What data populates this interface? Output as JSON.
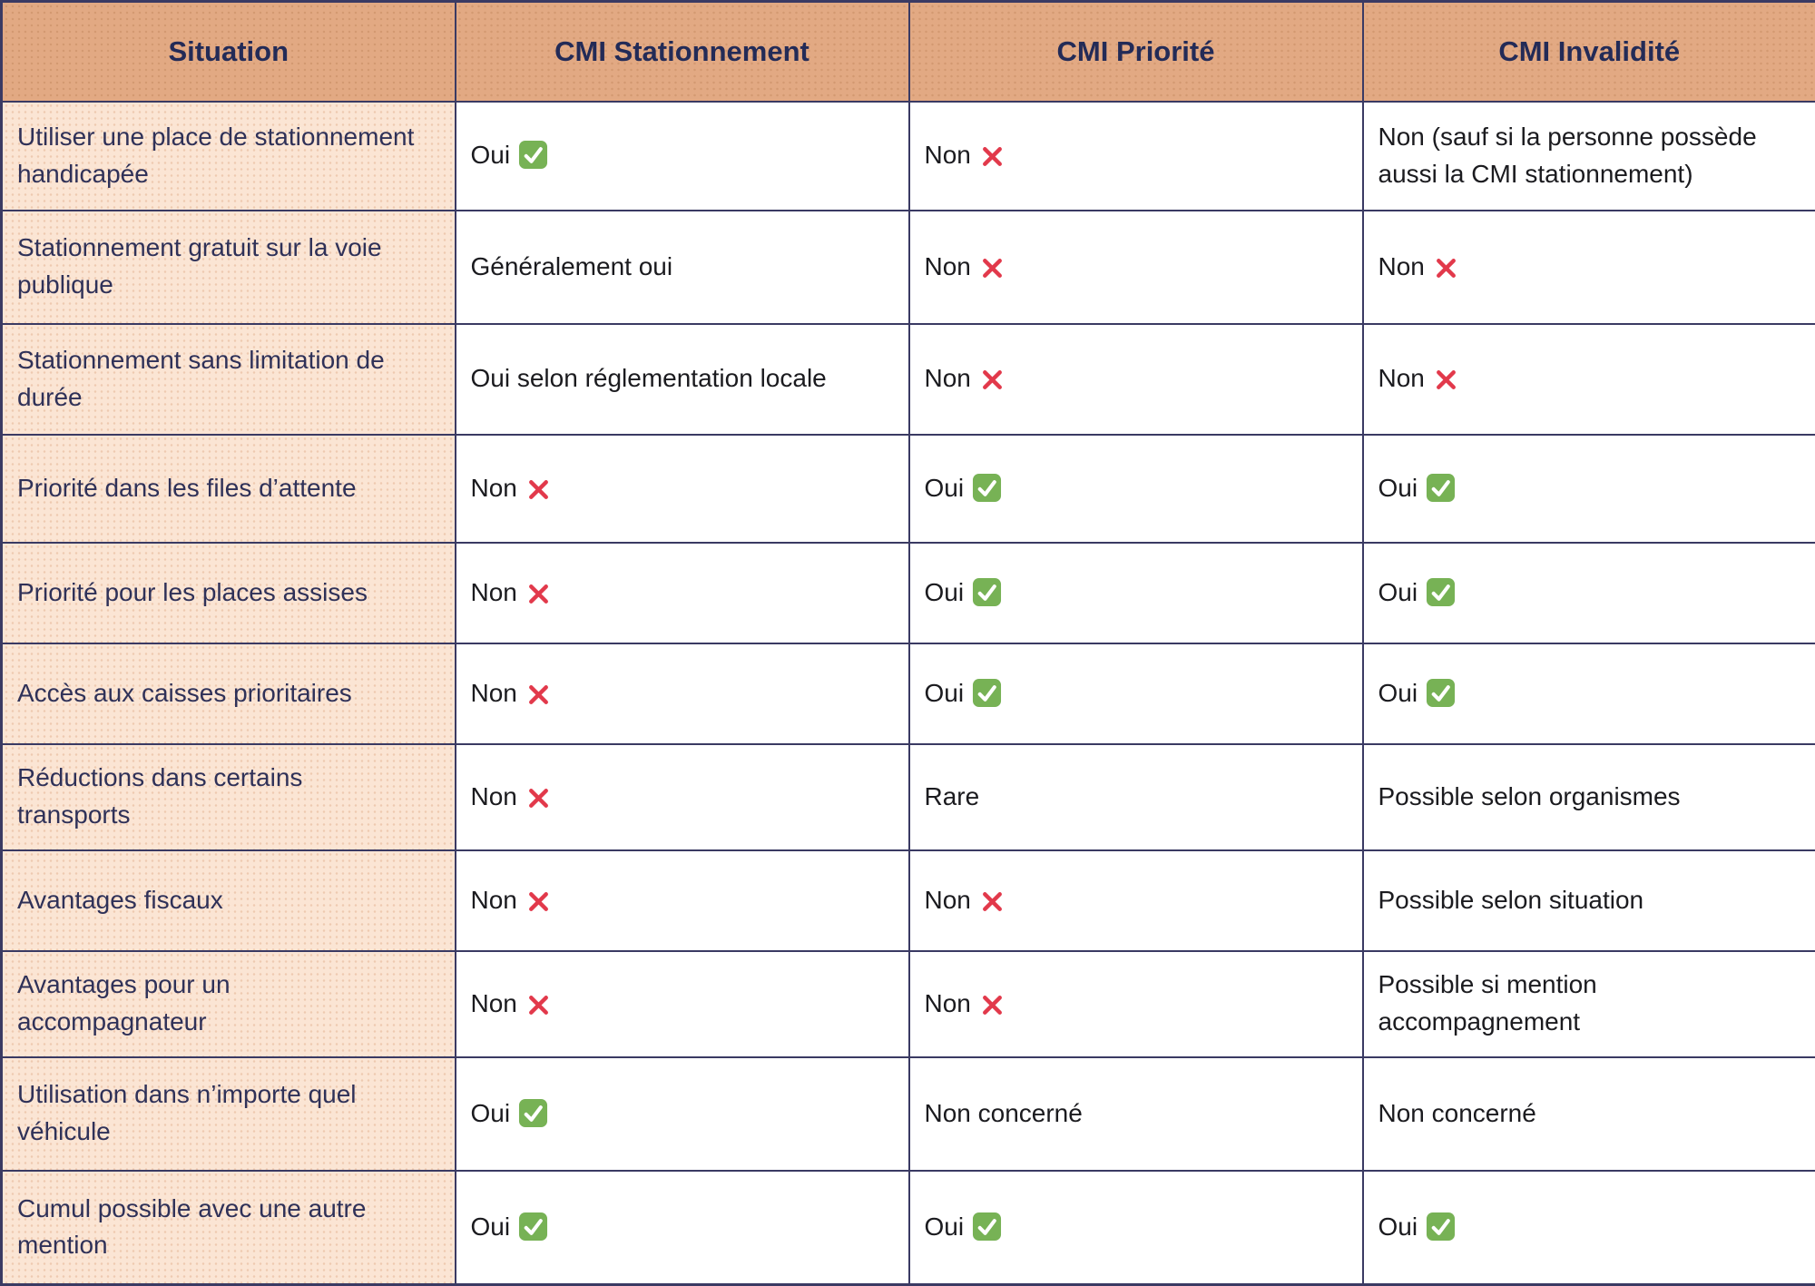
{
  "colors": {
    "header_bg": "#e2a983",
    "label_bg": "#fbe5d4",
    "border": "#3a3a63",
    "header_text": "#232b57",
    "label_text": "#2f3158",
    "body_text": "#1b1b1f",
    "check_green": "#77b255",
    "check_mark_white": "#ffffff",
    "cross_red": "#e2394b"
  },
  "icons": {
    "check": {
      "name": "check-icon",
      "glyph": "✓",
      "style": "white check in rounded green square"
    },
    "cross": {
      "name": "cross-icon",
      "glyph": "✕",
      "style": "red rounded cross mark"
    }
  },
  "chart_data": {
    "type": "table",
    "columns": [
      "Situation",
      "CMI Stationnement",
      "CMI Priorité",
      "CMI Invalidité"
    ],
    "rows": [
      {
        "situation": "Utiliser une place de stationnement handicapée",
        "cells": [
          {
            "text": "Oui",
            "icon": "check"
          },
          {
            "text": "Non",
            "icon": "cross"
          },
          {
            "text": "Non (sauf si la personne possède aussi la CMI stationnement)",
            "icon": null
          }
        ]
      },
      {
        "situation": "Stationnement gratuit sur la voie publique",
        "cells": [
          {
            "text": "Généralement oui",
            "icon": null
          },
          {
            "text": "Non",
            "icon": "cross"
          },
          {
            "text": "Non",
            "icon": "cross"
          }
        ]
      },
      {
        "situation": "Stationnement sans limitation de durée",
        "cells": [
          {
            "text": "Oui selon réglementation locale",
            "icon": null
          },
          {
            "text": "Non",
            "icon": "cross"
          },
          {
            "text": "Non",
            "icon": "cross"
          }
        ]
      },
      {
        "situation": "Priorité dans les files d’attente",
        "cells": [
          {
            "text": "Non",
            "icon": "cross"
          },
          {
            "text": "Oui",
            "icon": "check"
          },
          {
            "text": "Oui",
            "icon": "check"
          }
        ]
      },
      {
        "situation": "Priorité pour les places assises",
        "cells": [
          {
            "text": "Non",
            "icon": "cross"
          },
          {
            "text": "Oui",
            "icon": "check"
          },
          {
            "text": "Oui",
            "icon": "check"
          }
        ]
      },
      {
        "situation": "Accès aux caisses prioritaires",
        "cells": [
          {
            "text": "Non",
            "icon": "cross"
          },
          {
            "text": "Oui",
            "icon": "check"
          },
          {
            "text": "Oui",
            "icon": "check"
          }
        ]
      },
      {
        "situation": "Réductions dans certains transports",
        "cells": [
          {
            "text": "Non",
            "icon": "cross"
          },
          {
            "text": "Rare",
            "icon": null
          },
          {
            "text": "Possible selon organismes",
            "icon": null
          }
        ]
      },
      {
        "situation": "Avantages fiscaux",
        "cells": [
          {
            "text": "Non",
            "icon": "cross"
          },
          {
            "text": "Non",
            "icon": "cross"
          },
          {
            "text": "Possible selon situation",
            "icon": null
          }
        ]
      },
      {
        "situation": "Avantages pour un accompagnateur",
        "cells": [
          {
            "text": "Non",
            "icon": "cross"
          },
          {
            "text": "Non",
            "icon": "cross"
          },
          {
            "text": "Possible si mention accompagnement",
            "icon": null
          }
        ]
      },
      {
        "situation": "Utilisation dans n’importe quel véhicule",
        "cells": [
          {
            "text": "Oui",
            "icon": "check"
          },
          {
            "text": "Non concerné",
            "icon": null
          },
          {
            "text": "Non concerné",
            "icon": null
          }
        ]
      },
      {
        "situation": "Cumul possible avec une autre mention",
        "cells": [
          {
            "text": "Oui",
            "icon": "check"
          },
          {
            "text": "Oui",
            "icon": "check"
          },
          {
            "text": "Oui",
            "icon": "check"
          }
        ]
      }
    ]
  }
}
